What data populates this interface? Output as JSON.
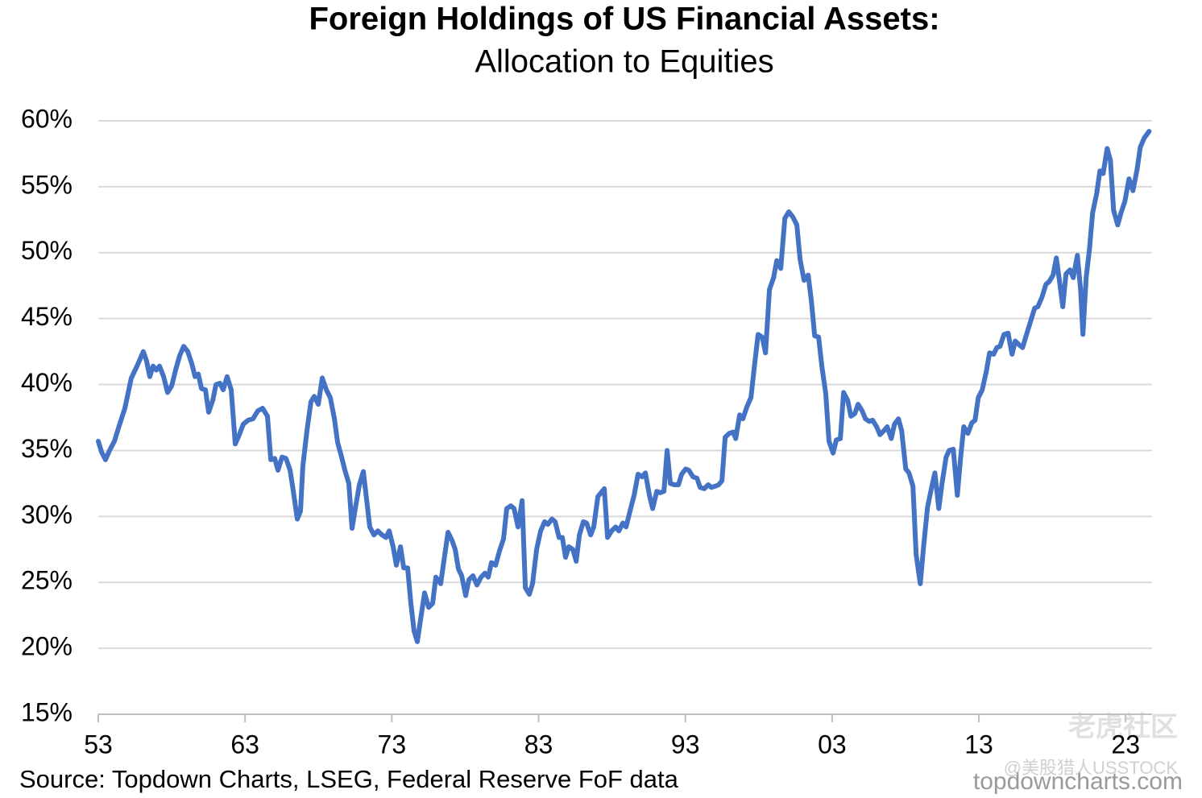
{
  "chart_data": {
    "type": "line",
    "title": "Foreign Holdings of US Financial Assets:",
    "subtitle": "Allocation to Equities",
    "source": "Source: Topdown Charts, LSEG, Federal Reserve FoF data",
    "watermarks": [
      "topdowncharts.com",
      "老虎社区",
      "@美股猎人USSTOCK"
    ],
    "color": "#4472c4",
    "grid": true,
    "xlim": [
      1953,
      2024.8
    ],
    "xticks": [
      {
        "value": 1953,
        "label": "53"
      },
      {
        "value": 1963,
        "label": "63"
      },
      {
        "value": 1973,
        "label": "73"
      },
      {
        "value": 1983,
        "label": "83"
      },
      {
        "value": 1993,
        "label": "93"
      },
      {
        "value": 2003,
        "label": "03"
      },
      {
        "value": 2013,
        "label": "13"
      },
      {
        "value": 2023,
        "label": "23"
      }
    ],
    "ylim": [
      15,
      60
    ],
    "yticks": [
      {
        "value": 15,
        "label": "15%"
      },
      {
        "value": 20,
        "label": "20%"
      },
      {
        "value": 25,
        "label": "25%"
      },
      {
        "value": 30,
        "label": "30%"
      },
      {
        "value": 35,
        "label": "35%"
      },
      {
        "value": 40,
        "label": "40%"
      },
      {
        "value": 45,
        "label": "45%"
      },
      {
        "value": 50,
        "label": "50%"
      },
      {
        "value": 55,
        "label": "55%"
      },
      {
        "value": 60,
        "label": "60%"
      }
    ],
    "x": [
      1953.0,
      1953.22,
      1953.49,
      1953.77,
      1954.1,
      1954.43,
      1954.81,
      1955.25,
      1955.64,
      1956.07,
      1956.29,
      1956.51,
      1956.73,
      1956.95,
      1957.17,
      1957.45,
      1957.72,
      1958.0,
      1958.27,
      1958.55,
      1958.82,
      1959.1,
      1959.37,
      1959.59,
      1959.81,
      1960.03,
      1960.3,
      1960.52,
      1960.8,
      1961.02,
      1961.29,
      1961.51,
      1961.78,
      1962.06,
      1962.33,
      1962.61,
      1962.88,
      1963.21,
      1963.54,
      1963.87,
      1964.2,
      1964.53,
      1964.75,
      1965.02,
      1965.24,
      1965.52,
      1965.79,
      1966.07,
      1966.29,
      1966.56,
      1966.78,
      1966.94,
      1967.22,
      1967.49,
      1967.71,
      1967.99,
      1968.26,
      1968.54,
      1968.81,
      1969.09,
      1969.31,
      1969.58,
      1969.8,
      1970.07,
      1970.29,
      1970.51,
      1970.79,
      1971.06,
      1971.28,
      1971.5,
      1971.78,
      1972.05,
      1972.33,
      1972.6,
      1972.82,
      1973.09,
      1973.31,
      1973.59,
      1973.81,
      1974.08,
      1974.3,
      1974.52,
      1974.74,
      1974.96,
      1975.23,
      1975.51,
      1975.78,
      1976.0,
      1976.33,
      1976.61,
      1976.83,
      1977.1,
      1977.32,
      1977.54,
      1977.76,
      1978.03,
      1978.25,
      1978.53,
      1978.8,
      1979.08,
      1979.35,
      1979.57,
      1979.79,
      1980.07,
      1980.34,
      1980.61,
      1980.83,
      1981.11,
      1981.33,
      1981.6,
      1981.88,
      1982.1,
      1982.37,
      1982.59,
      1982.87,
      1983.14,
      1983.41,
      1983.63,
      1983.91,
      1984.13,
      1984.4,
      1984.62,
      1984.84,
      1985.06,
      1985.34,
      1985.56,
      1985.78,
      1986.05,
      1986.27,
      1986.55,
      1986.76,
      1987.04,
      1987.26,
      1987.48,
      1987.7,
      1987.98,
      1988.25,
      1988.47,
      1988.74,
      1988.96,
      1989.23,
      1989.51,
      1989.78,
      1990.06,
      1990.28,
      1990.55,
      1990.77,
      1991.05,
      1991.27,
      1991.54,
      1991.76,
      1991.98,
      1992.25,
      1992.53,
      1992.75,
      1993.02,
      1993.24,
      1993.52,
      1993.79,
      1994.01,
      1994.29,
      1994.56,
      1994.78,
      1995.05,
      1995.27,
      1995.49,
      1995.71,
      1995.99,
      1996.26,
      1996.43,
      1996.7,
      1996.92,
      1997.19,
      1997.47,
      1997.74,
      1997.96,
      1998.24,
      1998.46,
      1998.73,
      1999.01,
      1999.23,
      1999.5,
      1999.78,
      2000.05,
      2000.33,
      2000.6,
      2000.82,
      2001.09,
      2001.37,
      2001.59,
      2001.81,
      2002.08,
      2002.3,
      2002.57,
      2002.79,
      2003.07,
      2003.29,
      2003.56,
      2003.78,
      2004.06,
      2004.28,
      2004.55,
      2004.77,
      2005.05,
      2005.27,
      2005.54,
      2005.76,
      2006.04,
      2006.26,
      2006.53,
      2006.75,
      2007.03,
      2007.25,
      2007.52,
      2007.74,
      2008.02,
      2008.24,
      2008.51,
      2008.73,
      2009.01,
      2009.23,
      2009.5,
      2009.78,
      2010.0,
      2010.27,
      2010.49,
      2010.77,
      2010.98,
      2011.26,
      2011.53,
      2011.75,
      2011.97,
      2012.25,
      2012.52,
      2012.74,
      2012.96,
      2013.23,
      2013.51,
      2013.73,
      2014.0,
      2014.22,
      2014.44,
      2014.71,
      2014.99,
      2015.26,
      2015.48,
      2015.76,
      2015.98,
      2016.25,
      2016.53,
      2016.8,
      2017.02,
      2017.29,
      2017.57,
      2017.79,
      2018.06,
      2018.28,
      2018.5,
      2018.72,
      2018.94,
      2019.21,
      2019.43,
      2019.71,
      2019.93,
      2020.09,
      2020.31,
      2020.53,
      2020.75,
      2021.03,
      2021.25,
      2021.47,
      2021.74,
      2021.96,
      2022.18,
      2022.46,
      2022.68,
      2022.95,
      2023.23,
      2023.5,
      2023.78,
      2024.0,
      2024.27,
      2024.6
    ],
    "values": [
      35.7,
      34.9,
      34.3,
      35.0,
      35.7,
      36.9,
      38.2,
      40.5,
      41.4,
      42.5,
      41.8,
      40.6,
      41.4,
      41.1,
      41.4,
      40.6,
      39.4,
      39.9,
      41.1,
      42.2,
      42.9,
      42.5,
      41.6,
      40.6,
      40.8,
      39.7,
      39.6,
      37.9,
      38.8,
      40.0,
      40.1,
      39.6,
      40.6,
      39.6,
      35.5,
      36.2,
      37.0,
      37.3,
      37.4,
      38.0,
      38.2,
      37.6,
      34.3,
      34.4,
      33.5,
      34.5,
      34.4,
      33.5,
      31.9,
      29.8,
      30.4,
      33.8,
      36.5,
      38.7,
      39.1,
      38.5,
      40.5,
      39.6,
      39.0,
      37.4,
      35.6,
      34.5,
      33.5,
      32.5,
      29.1,
      30.6,
      32.4,
      33.4,
      31.3,
      29.2,
      28.6,
      28.9,
      28.6,
      28.4,
      28.9,
      27.7,
      26.3,
      27.7,
      26.1,
      26.1,
      23.4,
      21.3,
      20.5,
      22.2,
      24.2,
      23.1,
      23.4,
      25.4,
      24.9,
      27.1,
      28.8,
      28.2,
      27.5,
      26.0,
      25.5,
      24.0,
      25.2,
      25.5,
      24.8,
      25.4,
      25.7,
      25.4,
      26.5,
      26.3,
      27.4,
      28.3,
      30.6,
      30.8,
      30.6,
      29.2,
      31.2,
      24.6,
      24.1,
      24.9,
      27.5,
      28.9,
      29.6,
      29.4,
      29.8,
      29.6,
      28.4,
      28.4,
      26.9,
      27.7,
      27.5,
      26.6,
      28.6,
      29.6,
      29.5,
      28.6,
      29.2,
      31.5,
      31.8,
      32.1,
      28.4,
      28.9,
      29.2,
      28.9,
      29.5,
      29.2,
      30.4,
      31.6,
      33.2,
      33.0,
      33.3,
      31.6,
      30.6,
      31.9,
      31.8,
      31.9,
      35.0,
      32.5,
      32.4,
      32.4,
      33.2,
      33.6,
      33.5,
      33.0,
      32.9,
      32.2,
      32.1,
      32.4,
      32.2,
      32.3,
      32.4,
      32.7,
      36.0,
      36.3,
      36.4,
      35.9,
      37.7,
      37.4,
      38.3,
      39.0,
      41.7,
      43.8,
      43.6,
      42.4,
      47.2,
      48.1,
      49.4,
      48.8,
      52.6,
      53.1,
      52.7,
      52.1,
      49.5,
      47.9,
      48.3,
      46.3,
      43.7,
      43.6,
      41.4,
      39.3,
      35.7,
      34.8,
      35.8,
      35.9,
      39.4,
      38.8,
      37.6,
      37.8,
      38.5,
      38.0,
      37.4,
      37.2,
      37.3,
      36.8,
      36.2,
      36.5,
      36.8,
      35.9,
      37.0,
      37.4,
      36.5,
      33.6,
      33.3,
      32.3,
      27.1,
      24.9,
      27.7,
      30.7,
      32.2,
      33.3,
      30.6,
      32.5,
      34.5,
      35.0,
      35.1,
      31.6,
      34.4,
      36.8,
      36.3,
      37.1,
      37.3,
      39.0,
      39.6,
      41.0,
      42.4,
      42.3,
      42.8,
      42.9,
      43.8,
      43.9,
      42.3,
      43.3,
      43.0,
      42.8,
      43.8,
      44.8,
      45.8,
      45.9,
      46.6,
      47.6,
      47.8,
      48.3,
      49.6,
      47.8,
      45.9,
      48.4,
      48.7,
      48.1,
      49.8,
      47.2,
      43.8,
      48.1,
      50.2,
      53.0,
      54.5,
      56.2,
      56.0,
      57.9,
      57.0,
      53.2,
      52.1,
      53.0,
      53.9,
      55.6,
      54.7,
      56.3,
      58.0,
      58.7,
      59.2
    ]
  }
}
